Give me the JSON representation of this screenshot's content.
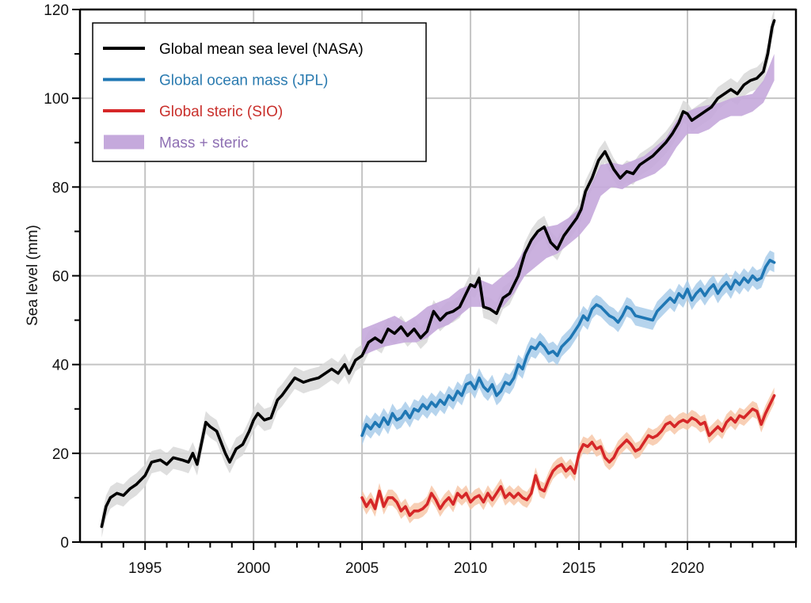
{
  "chart_data": {
    "type": "line",
    "title": "",
    "xlabel": "",
    "ylabel": "Sea level (mm)",
    "xlim": [
      1992,
      2025
    ],
    "ylim": [
      0,
      120
    ],
    "grid": true,
    "x_ticks": [
      1995,
      2000,
      2005,
      2010,
      2015,
      2020
    ],
    "x_tick_labels": [
      "1995",
      "2000",
      "2005",
      "2010",
      "2015",
      "2020"
    ],
    "x_minor_step": 1,
    "y_ticks": [
      0,
      20,
      40,
      60,
      80,
      100,
      120
    ],
    "y_tick_labels": [
      "0",
      "20",
      "40",
      "60",
      "80",
      "100",
      "120"
    ],
    "y_minor_step": 10,
    "legend": {
      "placement": "top-left",
      "entries": [
        {
          "label": "Global mean sea level (NASA)",
          "kind": "line",
          "color": "#000000",
          "text_color": "#000000"
        },
        {
          "label": "Global ocean mass (JPL)",
          "kind": "line",
          "color": "#1f77b4",
          "text_color": "#2b7bb0"
        },
        {
          "label": "Global steric (SIO)",
          "kind": "line",
          "color": "#d62728",
          "text_color": "#c9302c"
        },
        {
          "label": "Mass + steric",
          "kind": "band",
          "color": "#c5a9dc",
          "text_color": "#8e6fb3"
        }
      ]
    },
    "series": [
      {
        "name": "Global mean sea level (NASA)",
        "color": "#000000",
        "band_color": "#d8d8d8",
        "uncertainty": 2.5,
        "x": [
          1993.0,
          1993.2,
          1993.4,
          1993.7,
          1994.0,
          1994.3,
          1994.6,
          1995.0,
          1995.3,
          1995.7,
          1996.0,
          1996.3,
          1996.7,
          1997.0,
          1997.2,
          1997.4,
          1997.8,
          1998.0,
          1998.3,
          1998.7,
          1998.9,
          1999.2,
          1999.5,
          1999.8,
          2000.0,
          2000.2,
          2000.5,
          2000.8,
          2001.1,
          2001.3,
          2001.6,
          2001.9,
          2002.3,
          2002.6,
          2003.0,
          2003.3,
          2003.6,
          2003.9,
          2004.2,
          2004.4,
          2004.7,
          2005.0,
          2005.3,
          2005.6,
          2005.9,
          2006.2,
          2006.5,
          2006.8,
          2007.1,
          2007.4,
          2007.7,
          2008.0,
          2008.3,
          2008.6,
          2008.9,
          2009.2,
          2009.5,
          2009.8,
          2010.0,
          2010.2,
          2010.4,
          2010.6,
          2010.9,
          2011.2,
          2011.5,
          2011.8,
          2012.2,
          2012.5,
          2012.8,
          2013.1,
          2013.4,
          2013.7,
          2014.0,
          2014.3,
          2014.6,
          2014.9,
          2015.1,
          2015.3,
          2015.6,
          2015.9,
          2016.2,
          2016.4,
          2016.6,
          2016.9,
          2017.2,
          2017.5,
          2017.8,
          2018.1,
          2018.4,
          2018.7,
          2019.0,
          2019.3,
          2019.6,
          2019.8,
          2020.0,
          2020.2,
          2020.5,
          2020.8,
          2021.1,
          2021.4,
          2021.7,
          2022.0,
          2022.3,
          2022.6,
          2022.9,
          2023.2,
          2023.5,
          2023.7,
          2023.9,
          2024.0
        ],
        "values": [
          3.5,
          8,
          10,
          11,
          10.5,
          12,
          13,
          15,
          18,
          18.5,
          17.5,
          19,
          18.5,
          18,
          20,
          17.5,
          27,
          26,
          25,
          20,
          18,
          21,
          22,
          25,
          27.5,
          29,
          27.5,
          28,
          32,
          33,
          35,
          37,
          36,
          36.5,
          37,
          38,
          39,
          38,
          40,
          38,
          41,
          42,
          45,
          46,
          45,
          48,
          47,
          48.5,
          46.5,
          48,
          46,
          47.5,
          52,
          50,
          51.5,
          52,
          53,
          56,
          58,
          57.5,
          59.5,
          53,
          52.5,
          51.5,
          55,
          56,
          60,
          65,
          68,
          70,
          71,
          67.5,
          66,
          69,
          71,
          73,
          75,
          79,
          82,
          86,
          88,
          86,
          84,
          82,
          83.5,
          83,
          85,
          86,
          87,
          88.5,
          90,
          92,
          94.5,
          97,
          96.5,
          95,
          96,
          97,
          98,
          100,
          101,
          102,
          101,
          103,
          104,
          104.5,
          106,
          110,
          116,
          117.5
        ]
      },
      {
        "name": "Global ocean mass (JPL)",
        "color": "#1f77b4",
        "band_color": "#a9cdea",
        "uncertainty": 2.2,
        "x": [
          2005.0,
          2005.2,
          2005.4,
          2005.6,
          2005.8,
          2006.0,
          2006.2,
          2006.4,
          2006.6,
          2006.8,
          2007.0,
          2007.2,
          2007.4,
          2007.6,
          2007.8,
          2008.0,
          2008.2,
          2008.4,
          2008.6,
          2008.8,
          2009.0,
          2009.2,
          2009.4,
          2009.6,
          2009.8,
          2010.0,
          2010.2,
          2010.4,
          2010.6,
          2010.8,
          2011.0,
          2011.2,
          2011.4,
          2011.6,
          2011.8,
          2012.0,
          2012.2,
          2012.4,
          2012.6,
          2012.8,
          2013.0,
          2013.2,
          2013.4,
          2013.6,
          2013.8,
          2014.0,
          2014.2,
          2014.4,
          2014.6,
          2014.8,
          2015.0,
          2015.2,
          2015.4,
          2015.6,
          2015.8,
          2016.0,
          2016.2,
          2016.4,
          2016.6,
          2016.8,
          2017.0,
          2017.2,
          2017.4,
          2017.6,
          2018.4,
          2018.6,
          2018.8,
          2019.0,
          2019.2,
          2019.4,
          2019.6,
          2019.8,
          2020.0,
          2020.2,
          2020.4,
          2020.6,
          2020.8,
          2021.0,
          2021.2,
          2021.4,
          2021.6,
          2021.8,
          2022.0,
          2022.2,
          2022.4,
          2022.6,
          2022.8,
          2023.0,
          2023.2,
          2023.4,
          2023.6,
          2023.8,
          2024.0
        ],
        "values": [
          24,
          26.5,
          25.5,
          27,
          26,
          28,
          26.5,
          29,
          27.5,
          28,
          29.5,
          28,
          30,
          29.5,
          31,
          30,
          31.5,
          30.5,
          32,
          31,
          33,
          32,
          34,
          33,
          35.5,
          36,
          34.5,
          37,
          35,
          34,
          35.5,
          33,
          34,
          36,
          35.5,
          37,
          40,
          39,
          42,
          44,
          43.5,
          45,
          44,
          42.5,
          43,
          42,
          44,
          45,
          46,
          47.5,
          49,
          51,
          50,
          52.5,
          53.5,
          53,
          52,
          51,
          50.5,
          49.5,
          51,
          53,
          52.5,
          51,
          50,
          52,
          53,
          54,
          55,
          54,
          56,
          55,
          57,
          54.5,
          56,
          57,
          55.5,
          57,
          58,
          56,
          57.5,
          58.5,
          57,
          59,
          58,
          59.5,
          58.5,
          60,
          59,
          59.5,
          62,
          63.5,
          63
        ]
      },
      {
        "name": "Global steric (SIO)",
        "color": "#d62728",
        "band_color": "#f7c7a8",
        "uncertainty": 1.8,
        "x": [
          2005.0,
          2005.2,
          2005.4,
          2005.6,
          2005.8,
          2006.0,
          2006.2,
          2006.4,
          2006.6,
          2006.8,
          2007.0,
          2007.2,
          2007.4,
          2007.6,
          2007.8,
          2008.0,
          2008.2,
          2008.4,
          2008.6,
          2008.8,
          2009.0,
          2009.2,
          2009.4,
          2009.6,
          2009.8,
          2010.0,
          2010.2,
          2010.4,
          2010.6,
          2010.8,
          2011.0,
          2011.2,
          2011.4,
          2011.6,
          2011.8,
          2012.0,
          2012.2,
          2012.4,
          2012.6,
          2012.8,
          2013.0,
          2013.2,
          2013.4,
          2013.6,
          2013.8,
          2014.0,
          2014.2,
          2014.4,
          2014.6,
          2014.8,
          2015.0,
          2015.2,
          2015.4,
          2015.6,
          2015.8,
          2016.0,
          2016.2,
          2016.4,
          2016.6,
          2016.8,
          2017.0,
          2017.2,
          2017.4,
          2017.6,
          2017.8,
          2018.0,
          2018.2,
          2018.4,
          2018.6,
          2018.8,
          2019.0,
          2019.2,
          2019.4,
          2019.6,
          2019.8,
          2020.0,
          2020.2,
          2020.4,
          2020.6,
          2020.8,
          2021.0,
          2021.2,
          2021.4,
          2021.6,
          2021.8,
          2022.0,
          2022.2,
          2022.4,
          2022.6,
          2022.8,
          2023.0,
          2023.2,
          2023.4,
          2023.6,
          2023.8,
          2024.0
        ],
        "values": [
          10,
          8,
          9.5,
          7.5,
          11.5,
          8,
          10,
          10,
          9,
          7,
          8,
          6,
          7,
          7,
          7.5,
          8.5,
          11,
          9.5,
          7.5,
          9,
          10,
          8.5,
          11,
          10,
          11,
          9,
          10,
          10.5,
          9,
          11,
          9.5,
          11,
          12.5,
          10,
          11,
          10,
          11,
          10,
          9.5,
          11,
          15,
          12,
          11.5,
          14,
          16,
          17,
          17.5,
          16,
          17,
          15.5,
          20,
          22,
          21.5,
          22.5,
          21,
          21.5,
          19,
          18,
          19,
          21,
          22,
          23,
          22,
          20.5,
          21,
          22.5,
          24,
          23.5,
          24,
          25,
          26.5,
          27,
          26,
          27,
          27.5,
          27,
          28,
          27.5,
          26.5,
          27,
          24,
          25,
          26,
          25,
          27,
          28,
          27,
          28.5,
          28,
          29,
          30,
          29.5,
          26.5,
          29,
          31,
          33
        ]
      }
    ],
    "bands": [
      {
        "name": "Mass + steric",
        "color": "#c5a9dc",
        "x": [
          2005.0,
          2005.5,
          2006.0,
          2006.5,
          2007.0,
          2007.5,
          2008.0,
          2008.5,
          2009.0,
          2009.5,
          2010.0,
          2010.5,
          2011.0,
          2011.5,
          2012.0,
          2012.5,
          2013.0,
          2013.5,
          2014.0,
          2014.5,
          2015.0,
          2015.5,
          2016.0,
          2016.5,
          2017.0,
          2017.5,
          2018.0,
          2018.5,
          2019.0,
          2019.5,
          2020.0,
          2020.5,
          2021.0,
          2021.5,
          2022.0,
          2022.5,
          2023.0,
          2023.5,
          2024.0
        ],
        "lower": [
          42,
          43,
          44,
          44.5,
          45,
          45,
          46,
          48,
          49,
          51,
          53,
          53,
          52,
          53,
          56,
          60,
          62,
          64,
          65,
          67,
          69,
          72,
          78,
          80,
          79.5,
          81,
          82,
          83,
          85,
          89,
          92,
          92,
          93,
          95,
          96,
          96,
          97,
          99,
          104
        ],
        "upper": [
          48,
          49,
          50,
          51,
          49.5,
          51,
          53,
          54,
          55,
          57,
          58,
          59,
          58,
          60,
          62,
          66,
          69,
          71,
          71.5,
          73,
          75,
          80,
          85,
          85.5,
          85,
          86,
          87,
          89,
          91,
          95,
          97,
          98,
          98.5,
          99,
          100,
          100.5,
          101,
          104,
          110
        ]
      }
    ]
  }
}
